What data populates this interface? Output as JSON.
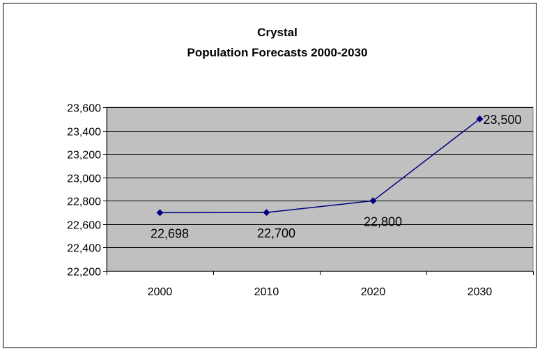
{
  "chart_data": {
    "type": "line",
    "title_lines": [
      "Crystal",
      "Population Forecasts 2000-2030"
    ],
    "categories": [
      "2000",
      "2010",
      "2020",
      "2030"
    ],
    "series": [
      {
        "values": [
          22698,
          22700,
          22800,
          23500
        ],
        "labels": [
          "22,698",
          "22,700",
          "22,800",
          "23,500"
        ]
      }
    ],
    "ylim": [
      22200,
      23600
    ],
    "ytick_values": [
      22200,
      22400,
      22600,
      22800,
      23000,
      23200,
      23400,
      23600
    ],
    "ytick_labels": [
      "22,200",
      "22,400",
      "22,600",
      "22,800",
      "23,000",
      "23,200",
      "23,400",
      "23,600"
    ],
    "grid": true,
    "legend": "none",
    "colors": {
      "plot_background": "#c0c0c0",
      "line": "#000080",
      "marker": "#000080",
      "grid": "#000000"
    }
  }
}
